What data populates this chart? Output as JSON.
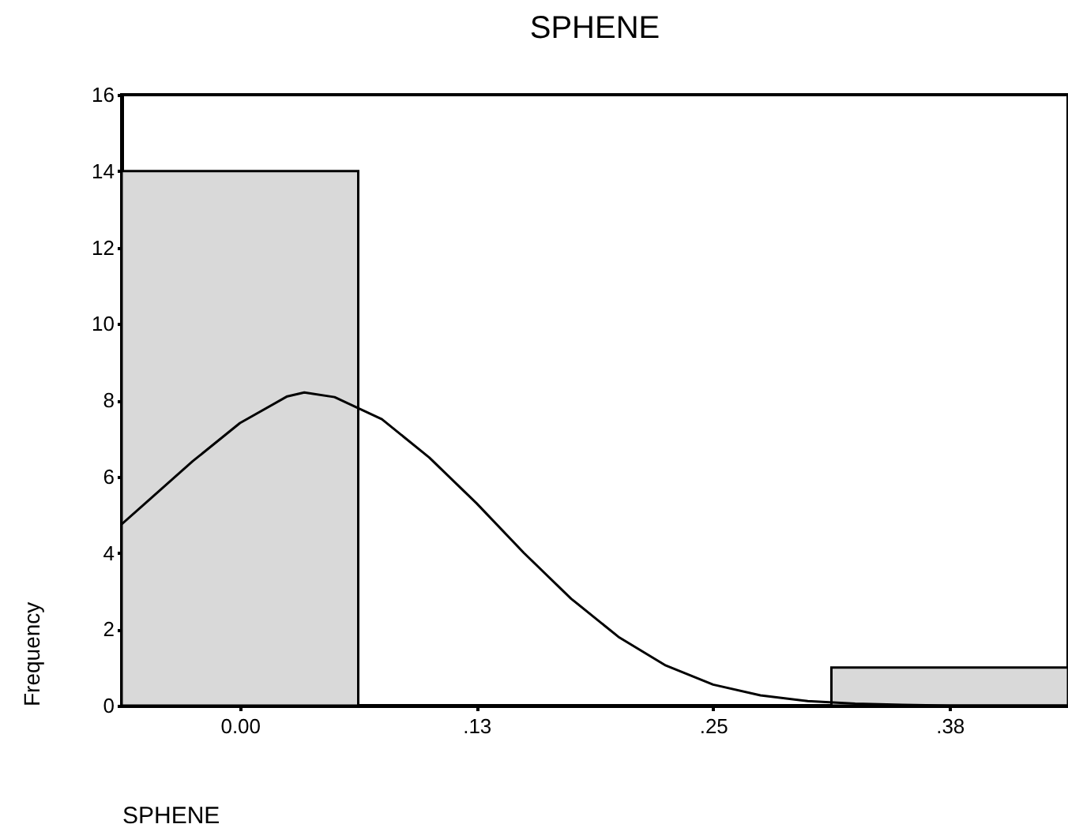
{
  "chart_data": {
    "type": "histogram",
    "title": "SPHENE",
    "xlabel": "SPHENE",
    "ylabel": "Frequency",
    "bins": [
      -0.0625,
      0.0625,
      0.1875,
      0.3125,
      0.4375
    ],
    "series": [
      {
        "color": "#d9d9d9",
        "values": [
          14,
          0,
          0,
          1
        ]
      },
      {
        "type": "line",
        "color": "#000000",
        "x": [
          -0.0625,
          -0.05,
          -0.025,
          0,
          0.025,
          0.034,
          0.05,
          0.075,
          0.1,
          0.125,
          0.15,
          0.175,
          0.2,
          0.225,
          0.25,
          0.275,
          0.3,
          0.325,
          0.35,
          0.375,
          0.4,
          0.4375
        ],
        "values": [
          4.75,
          5.3,
          6.4,
          7.4,
          8.1,
          8.2,
          8.08,
          7.5,
          6.5,
          5.3,
          4.0,
          2.8,
          1.8,
          1.05,
          0.55,
          0.27,
          0.12,
          0.05,
          0.02,
          0,
          0,
          0
        ]
      }
    ],
    "xlim": [
      -0.0625,
      0.4375
    ],
    "xticks": [
      {
        "value": 0,
        "label": "0.00"
      },
      {
        "value": 0.125,
        "label": ".13"
      },
      {
        "value": 0.25,
        "label": ".25"
      },
      {
        "value": 0.375,
        "label": ".38"
      }
    ],
    "ylim": [
      0,
      16
    ],
    "yticks": [
      0,
      2,
      4,
      6,
      8,
      10,
      12,
      14,
      16
    ],
    "grid": false,
    "marker": "none",
    "line_style": "solid"
  }
}
